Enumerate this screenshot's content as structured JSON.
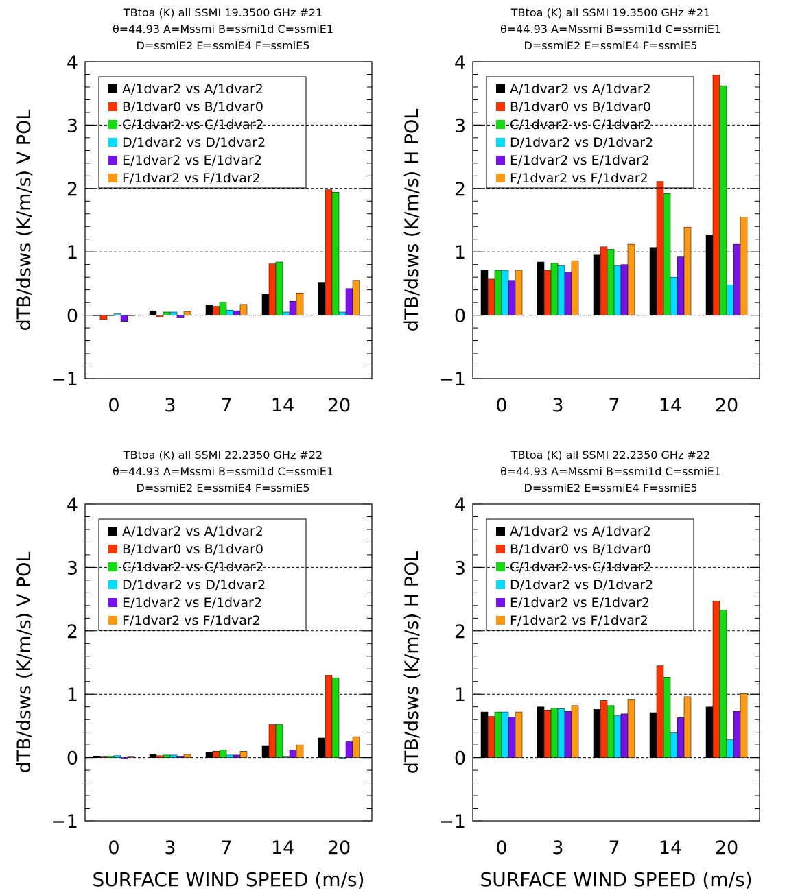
{
  "colors": {
    "A": "#000000",
    "B": "#ff3300",
    "C": "#11dd11",
    "D": "#00ddff",
    "E": "#7711ee",
    "F": "#ff9911"
  },
  "shared_xlabel": "SURFACE WIND SPEED (m/s)",
  "chart_data": [
    {
      "type": "bar",
      "title": [
        "TBtoa (K) all SSMI 19.3500 GHz #21",
        "θ=44.93 A=Mssmi B=ssmi1d C=ssmiE1",
        "D=ssmiE2 E=ssmiE4 F=ssmiE5"
      ],
      "ylabel": "dTB/dsws (K/m/s) V POL",
      "ylim": [
        -1,
        4
      ],
      "yticks": [
        "−1",
        "0",
        "1",
        "2",
        "3",
        "4"
      ],
      "gridlines": [
        0,
        1,
        2,
        3
      ],
      "categories": [
        "0",
        "3",
        "7",
        "14",
        "20"
      ],
      "legend_position": "top-left",
      "series": [
        {
          "key": "A",
          "name": "A/1dvar2 vs A/1dvar2",
          "values": [
            0.0,
            0.07,
            0.16,
            0.33,
            0.52
          ]
        },
        {
          "key": "B",
          "name": "B/1dvar0 vs B/1dvar0",
          "values": [
            -0.07,
            -0.02,
            0.14,
            0.81,
            1.98
          ]
        },
        {
          "key": "C",
          "name": "C/1dvar2 vs C/1dvar2",
          "values": [
            0.0,
            0.05,
            0.21,
            0.84,
            1.94
          ]
        },
        {
          "key": "D",
          "name": "D/1dvar2 vs D/1dvar2",
          "values": [
            0.02,
            0.05,
            0.08,
            0.05,
            0.05
          ]
        },
        {
          "key": "E",
          "name": "E/1dvar2 vs E/1dvar2",
          "values": [
            -0.1,
            -0.04,
            0.07,
            0.22,
            0.42
          ]
        },
        {
          "key": "F",
          "name": "F/1dvar2 vs F/1dvar2",
          "values": [
            0.0,
            0.06,
            0.17,
            0.35,
            0.55
          ]
        }
      ]
    },
    {
      "type": "bar",
      "title": [
        "TBtoa (K) all SSMI 19.3500 GHz #21",
        "θ=44.93 A=Mssmi B=ssmi1d C=ssmiE1",
        "D=ssmiE2 E=ssmiE4 F=ssmiE5"
      ],
      "ylabel": "dTB/dsws (K/m/s) H POL",
      "ylim": [
        -1,
        4
      ],
      "yticks": [
        "−1",
        "0",
        "1",
        "2",
        "3",
        "4"
      ],
      "gridlines": [
        0,
        1,
        2,
        3
      ],
      "categories": [
        "0",
        "3",
        "7",
        "14",
        "20"
      ],
      "legend_position": "top-left",
      "series": [
        {
          "key": "A",
          "name": "A/1dvar2 vs A/1dvar2",
          "values": [
            0.71,
            0.84,
            0.95,
            1.07,
            1.27
          ]
        },
        {
          "key": "B",
          "name": "B/1dvar0 vs B/1dvar0",
          "values": [
            0.57,
            0.71,
            1.08,
            2.11,
            3.79
          ]
        },
        {
          "key": "C",
          "name": "C/1dvar2 vs C/1dvar2",
          "values": [
            0.71,
            0.82,
            1.04,
            1.92,
            3.62
          ]
        },
        {
          "key": "D",
          "name": "D/1dvar2 vs D/1dvar2",
          "values": [
            0.71,
            0.78,
            0.78,
            0.6,
            0.48
          ]
        },
        {
          "key": "E",
          "name": "E/1dvar2 vs E/1dvar2",
          "values": [
            0.55,
            0.68,
            0.8,
            0.92,
            1.12
          ]
        },
        {
          "key": "F",
          "name": "F/1dvar2 vs F/1dvar2",
          "values": [
            0.71,
            0.86,
            1.12,
            1.39,
            1.55
          ]
        }
      ]
    },
    {
      "type": "bar",
      "title": [
        "TBtoa (K) all SSMI 22.2350 GHz #22",
        "θ=44.93 A=Mssmi B=ssmi1d C=ssmiE1",
        "D=ssmiE2 E=ssmiE4 F=ssmiE5"
      ],
      "ylabel": "dTB/dsws (K/m/s) V POL",
      "ylim": [
        -1,
        4
      ],
      "yticks": [
        "−1",
        "0",
        "1",
        "2",
        "3",
        "4"
      ],
      "gridlines": [
        0,
        1,
        2,
        3
      ],
      "categories": [
        "0",
        "3",
        "7",
        "14",
        "20"
      ],
      "legend_position": "top-left",
      "series": [
        {
          "key": "A",
          "name": "A/1dvar2 vs A/1dvar2",
          "values": [
            0.02,
            0.05,
            0.09,
            0.18,
            0.31
          ]
        },
        {
          "key": "B",
          "name": "B/1dvar0 vs B/1dvar0",
          "values": [
            0.01,
            0.03,
            0.1,
            0.52,
            1.3
          ]
        },
        {
          "key": "C",
          "name": "C/1dvar2 vs C/1dvar2",
          "values": [
            0.02,
            0.04,
            0.12,
            0.52,
            1.26
          ]
        },
        {
          "key": "D",
          "name": "D/1dvar2 vs D/1dvar2",
          "values": [
            0.03,
            0.04,
            0.04,
            0.01,
            -0.01
          ]
        },
        {
          "key": "E",
          "name": "E/1dvar2 vs E/1dvar2",
          "values": [
            -0.02,
            0.02,
            0.04,
            0.12,
            0.25
          ]
        },
        {
          "key": "F",
          "name": "F/1dvar2 vs F/1dvar2",
          "values": [
            0.01,
            0.05,
            0.1,
            0.2,
            0.33
          ]
        }
      ]
    },
    {
      "type": "bar",
      "title": [
        "TBtoa (K) all SSMI 22.2350 GHz #22",
        "θ=44.93 A=Mssmi B=ssmi1d C=ssmiE1",
        "D=ssmiE2 E=ssmiE4 F=ssmiE5"
      ],
      "ylabel": "dTB/dsws (K/m/s) H POL",
      "ylim": [
        -1,
        4
      ],
      "yticks": [
        "−1",
        "0",
        "1",
        "2",
        "3",
        "4"
      ],
      "gridlines": [
        0,
        1,
        2,
        3
      ],
      "categories": [
        "0",
        "3",
        "7",
        "14",
        "20"
      ],
      "legend_position": "top-left",
      "series": [
        {
          "key": "A",
          "name": "A/1dvar2 vs A/1dvar2",
          "values": [
            0.72,
            0.8,
            0.76,
            0.71,
            0.8
          ]
        },
        {
          "key": "B",
          "name": "B/1dvar0 vs B/1dvar0",
          "values": [
            0.65,
            0.75,
            0.9,
            1.45,
            2.47
          ]
        },
        {
          "key": "C",
          "name": "C/1dvar2 vs C/1dvar2",
          "values": [
            0.72,
            0.78,
            0.82,
            1.27,
            2.33
          ]
        },
        {
          "key": "D",
          "name": "D/1dvar2 vs D/1dvar2",
          "values": [
            0.72,
            0.77,
            0.66,
            0.39,
            0.28
          ]
        },
        {
          "key": "E",
          "name": "E/1dvar2 vs E/1dvar2",
          "values": [
            0.64,
            0.73,
            0.69,
            0.63,
            0.73
          ]
        },
        {
          "key": "F",
          "name": "F/1dvar2 vs F/1dvar2",
          "values": [
            0.72,
            0.82,
            0.92,
            0.96,
            1.01
          ]
        }
      ]
    }
  ]
}
